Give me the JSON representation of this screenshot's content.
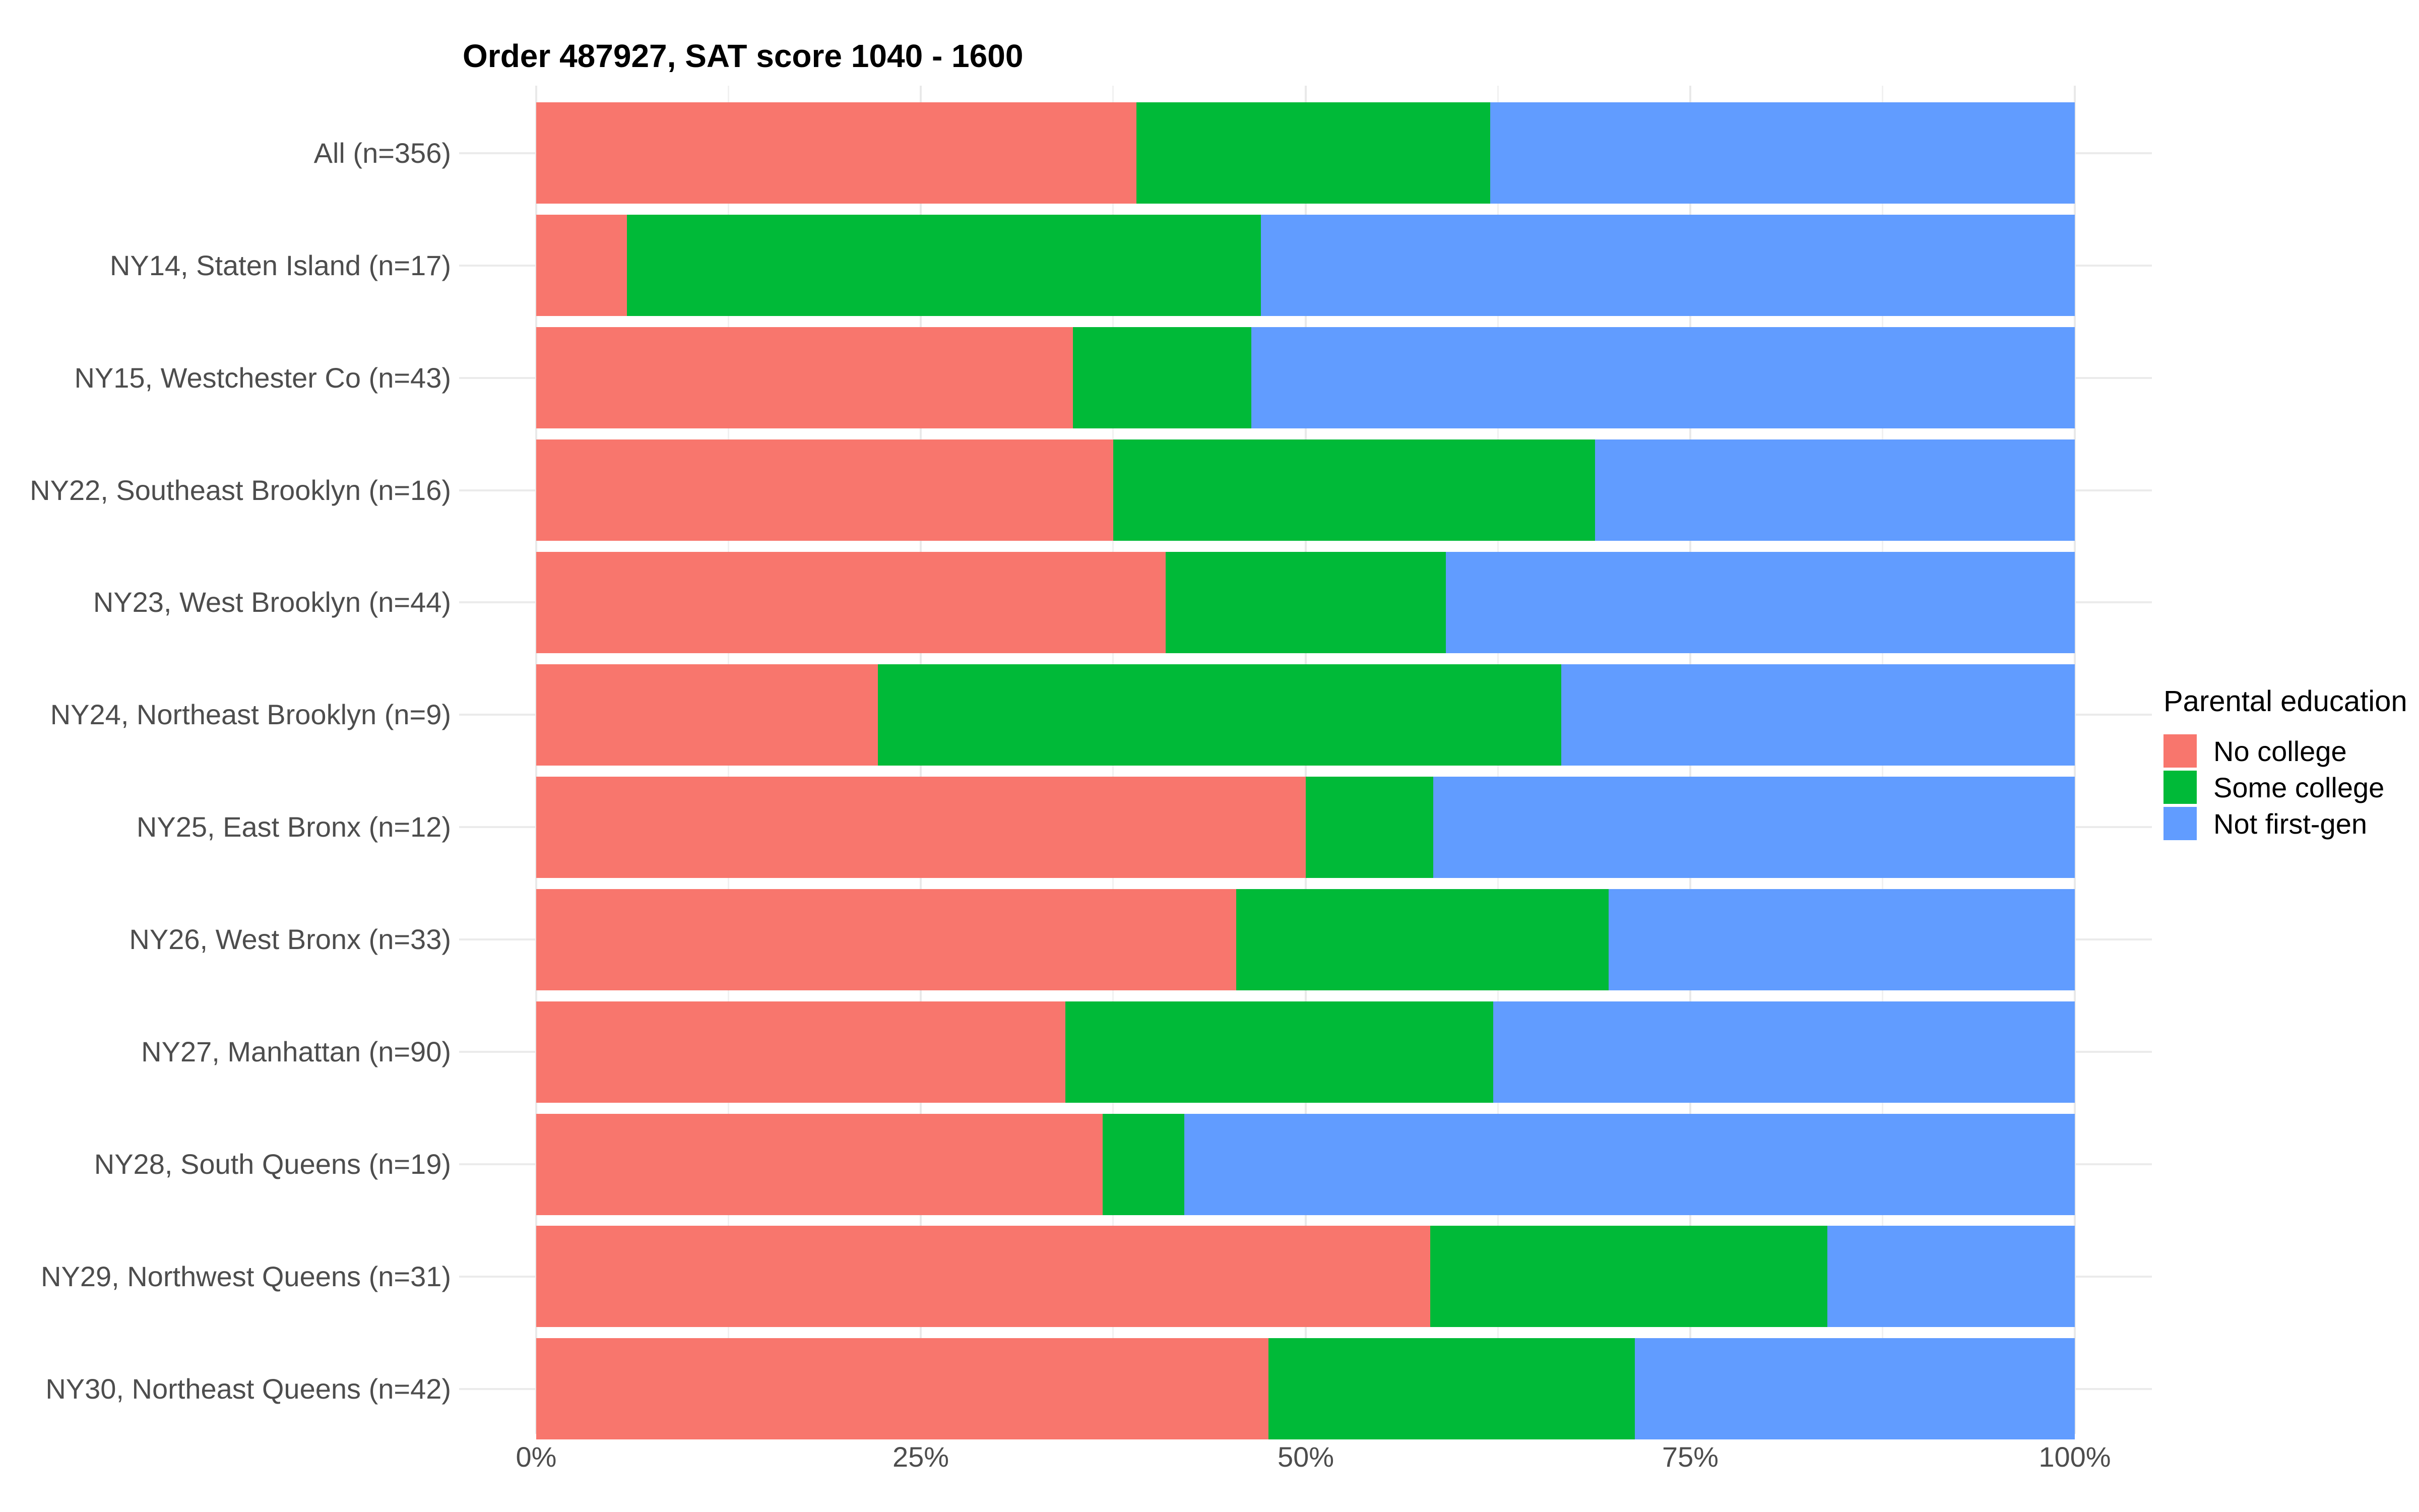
{
  "title": "Order 487927, SAT score 1040 - 1600",
  "legend": {
    "title": "Parental education",
    "items": [
      {
        "label": "No college",
        "color": "#F8766D"
      },
      {
        "label": "Some college",
        "color": "#00BA38"
      },
      {
        "label": "Not first-gen",
        "color": "#619CFF"
      }
    ]
  },
  "chart_data": {
    "type": "bar",
    "orientation": "horizontal",
    "stacked": true,
    "units": "percent_of_row",
    "title": "Order 487927, SAT score 1040 - 1600",
    "categories": [
      "All (n=356)",
      "NY14, Staten Island (n=17)",
      "NY15, Westchester Co (n=43)",
      "NY22, Southeast Brooklyn (n=16)",
      "NY23, West Brooklyn (n=44)",
      "NY24, Northeast Brooklyn (n=9)",
      "NY25, East Bronx (n=12)",
      "NY26, West Bronx (n=33)",
      "NY27, Manhattan (n=90)",
      "NY28, South Queens (n=19)",
      "NY29, Northwest Queens (n=31)",
      "NY30, Northeast Queens (n=42)"
    ],
    "series": [
      {
        "name": "No college",
        "color": "#F8766D",
        "values": [
          39.0,
          5.9,
          34.9,
          37.5,
          40.9,
          22.2,
          50.0,
          45.5,
          34.4,
          36.8,
          58.1,
          47.6
        ]
      },
      {
        "name": "Some college",
        "color": "#00BA38",
        "values": [
          23.0,
          41.2,
          11.6,
          31.3,
          18.2,
          44.4,
          8.3,
          24.2,
          27.8,
          5.3,
          25.8,
          23.8
        ]
      },
      {
        "name": "Not first-gen",
        "color": "#619CFF",
        "values": [
          38.0,
          52.9,
          53.5,
          31.2,
          40.9,
          33.4,
          41.7,
          30.3,
          37.8,
          57.9,
          16.1,
          28.6
        ]
      }
    ],
    "xlabel": "",
    "ylabel": "",
    "xlim": [
      0,
      100
    ],
    "x_tick_values": [
      0,
      25,
      50,
      75,
      100
    ],
    "x_tick_labels": [
      "0%",
      "25%",
      "50%",
      "75%",
      "100%"
    ],
    "x_minor_tick_values": [
      12.5,
      37.5,
      62.5,
      87.5
    ],
    "grid": true,
    "legend_title": "Parental education",
    "legend_position": "right"
  }
}
